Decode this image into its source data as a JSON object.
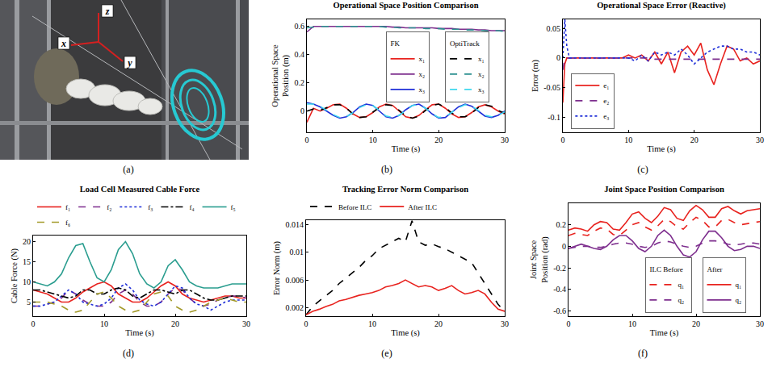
{
  "chart_data": [
    {
      "type": "image",
      "caption": "(a)",
      "annotations": [
        "z",
        "x",
        "y"
      ]
    },
    {
      "type": "line",
      "title": "Operational Space Position Comparison",
      "caption": "(b)",
      "x_label": "Time (s)",
      "y_label": "Operational Space Position (m)",
      "x": [
        0,
        1,
        2,
        3,
        4,
        5,
        6,
        7,
        8,
        9,
        10,
        11,
        12,
        13,
        14,
        15,
        16,
        17,
        18,
        19,
        20,
        21,
        22,
        23,
        24,
        25,
        26,
        27,
        28,
        29,
        30
      ],
      "xlim": [
        0,
        30
      ],
      "xticks": [
        0,
        10,
        20,
        30
      ],
      "ylim": [
        -0.15,
        0.65
      ],
      "yticks": [
        0,
        0.2,
        0.4,
        0.6
      ],
      "grid": false,
      "legend": "right",
      "series": [
        {
          "name": "x₁",
          "group": "FK",
          "color": "#e8231f",
          "line_style": "solid",
          "values": [
            -0.08,
            0.02,
            0.0,
            0.02,
            0.045,
            0.05,
            0.02,
            -0.02,
            -0.045,
            -0.04,
            -0.01,
            0.03,
            0.05,
            0.04,
            0.0,
            -0.04,
            -0.05,
            -0.03,
            0.01,
            0.045,
            0.05,
            0.02,
            -0.02,
            -0.045,
            -0.04,
            -0.01,
            0.03,
            0.045,
            0.03,
            0.0,
            -0.02
          ]
        },
        {
          "name": "x₂",
          "group": "FK",
          "color": "#7e2f8e",
          "line_style": "solid",
          "values": [
            0.56,
            0.6,
            0.6,
            0.6,
            0.6,
            0.6,
            0.6,
            0.6,
            0.6,
            0.6,
            0.6,
            0.6,
            0.6,
            0.595,
            0.595,
            0.59,
            0.59,
            0.59,
            0.59,
            0.59,
            0.585,
            0.585,
            0.585,
            0.58,
            0.58,
            0.58,
            0.575,
            0.575,
            0.57,
            0.57,
            0.57
          ]
        },
        {
          "name": "x₃",
          "group": "FK",
          "color": "#1f2fd8",
          "line_style": "solid",
          "values": [
            0.06,
            0.05,
            0.03,
            0.0,
            -0.03,
            -0.05,
            -0.04,
            -0.01,
            0.03,
            0.05,
            0.04,
            0.0,
            -0.04,
            -0.05,
            -0.03,
            0.01,
            0.04,
            0.05,
            0.02,
            -0.02,
            -0.05,
            -0.045,
            -0.01,
            0.03,
            0.05,
            0.035,
            0.0,
            -0.035,
            -0.045,
            -0.03,
            0.0
          ]
        },
        {
          "name": "x₁",
          "group": "OptiTrack",
          "color": "#000000",
          "line_style": "dashed",
          "values": [
            0.0,
            0.015,
            0.005,
            0.025,
            0.045,
            0.045,
            0.02,
            -0.02,
            -0.045,
            -0.04,
            -0.01,
            0.025,
            0.045,
            0.04,
            0.005,
            -0.035,
            -0.05,
            -0.035,
            0.005,
            0.04,
            0.05,
            0.025,
            -0.015,
            -0.04,
            -0.04,
            -0.015,
            0.025,
            0.045,
            0.035,
            0.005,
            -0.015
          ]
        },
        {
          "name": "x₂",
          "group": "OptiTrack",
          "color": "#2a8f8f",
          "line_style": "dashed",
          "values": [
            0.59,
            0.595,
            0.6,
            0.6,
            0.6,
            0.6,
            0.6,
            0.6,
            0.6,
            0.6,
            0.6,
            0.6,
            0.595,
            0.595,
            0.59,
            0.59,
            0.59,
            0.59,
            0.585,
            0.585,
            0.585,
            0.58,
            0.58,
            0.58,
            0.575,
            0.575,
            0.575,
            0.57,
            0.57,
            0.57,
            0.565
          ]
        },
        {
          "name": "x₃",
          "group": "OptiTrack",
          "color": "#3fd8ee",
          "line_style": "dashed",
          "values": [
            0.05,
            0.05,
            0.035,
            0.005,
            -0.025,
            -0.045,
            -0.04,
            -0.01,
            0.025,
            0.045,
            0.04,
            0.005,
            -0.035,
            -0.045,
            -0.03,
            0.005,
            0.04,
            0.045,
            0.02,
            -0.02,
            -0.045,
            -0.04,
            -0.01,
            0.025,
            0.045,
            0.035,
            0.005,
            -0.03,
            -0.04,
            -0.03,
            -0.005
          ]
        }
      ]
    },
    {
      "type": "line",
      "title": "Operational Space Error (Reactive)",
      "caption": "(c)",
      "x_label": "Time (s)",
      "y_label": "Error (m)",
      "x": [
        0,
        0.3,
        0.6,
        1,
        2,
        3,
        4,
        5,
        6,
        7,
        8,
        9,
        10,
        11,
        12,
        13,
        14,
        15,
        16,
        17,
        18,
        19,
        20,
        21,
        22,
        23,
        24,
        25,
        26,
        27,
        28,
        29,
        30
      ],
      "xlim": [
        0,
        30
      ],
      "xticks": [
        0,
        10,
        20,
        30
      ],
      "ylim": [
        -0.125,
        0.065
      ],
      "yticks": [
        -0.1,
        -0.05,
        0,
        0.05
      ],
      "grid": false,
      "legend": "lower left",
      "series": [
        {
          "name": "e₁",
          "color": "#e8231f",
          "line_style": "solid",
          "values": [
            -0.075,
            -0.01,
            0.0,
            0.0,
            0.0,
            0.0,
            0.0,
            0.0,
            0.0,
            0.0,
            0.0,
            0.0,
            0.005,
            0.0,
            0.005,
            -0.005,
            0.01,
            -0.01,
            0.01,
            -0.025,
            0.01,
            0.02,
            0.005,
            0.025,
            -0.02,
            -0.045,
            -0.01,
            0.02,
            0.015,
            -0.005,
            0.0,
            -0.01,
            -0.005
          ]
        },
        {
          "name": "e₂",
          "color": "#7e2f8e",
          "line_style": "dashed",
          "values": [
            -0.02,
            0.0,
            0.0,
            0.0,
            0.0,
            0.0,
            0.0,
            0.0,
            0.0,
            0.0,
            0.0,
            0.0,
            0.0,
            0.0,
            0.0,
            0.0,
            -0.002,
            -0.002,
            -0.002,
            -0.002,
            -0.002,
            -0.002,
            -0.002,
            -0.002,
            -0.002,
            -0.002,
            -0.002,
            -0.002,
            -0.002,
            -0.002,
            -0.002,
            -0.002,
            -0.002
          ]
        },
        {
          "name": "e₃",
          "color": "#1f2fd8",
          "line_style": "dotted",
          "values": [
            0.0,
            0.065,
            0.02,
            0.0,
            0.0,
            0.0,
            0.0,
            0.0,
            0.0,
            0.0,
            0.0,
            0.0,
            0.0,
            -0.005,
            0.005,
            -0.005,
            0.01,
            0.005,
            0.01,
            0.005,
            0.015,
            0.005,
            -0.01,
            0.0,
            0.01,
            0.015,
            0.02,
            0.02,
            0.015,
            0.015,
            0.01,
            0.01,
            0.005
          ]
        }
      ]
    },
    {
      "type": "line",
      "title": "Load Cell Measured Cable Force",
      "caption": "(d)",
      "x_label": "Time (s)",
      "y_label": "Cable Force (N)",
      "x": [
        0,
        1,
        2,
        3,
        4,
        5,
        6,
        7,
        8,
        9,
        10,
        11,
        12,
        13,
        14,
        15,
        16,
        17,
        18,
        19,
        20,
        21,
        22,
        23,
        24,
        25,
        26,
        27,
        28,
        29,
        30
      ],
      "xlim": [
        0,
        30
      ],
      "xticks": [
        0,
        10,
        20,
        30
      ],
      "ylim": [
        1.5,
        21.5
      ],
      "yticks": [
        5,
        10,
        15,
        20
      ],
      "grid": false,
      "legend": "top",
      "series": [
        {
          "name": "f₁",
          "color": "#e8231f",
          "line_style": "solid",
          "values": [
            8,
            7.5,
            7,
            6,
            5,
            5,
            6,
            7.5,
            8.5,
            9.5,
            10,
            9,
            7,
            6,
            5,
            5,
            6,
            7.5,
            9,
            10,
            9,
            7,
            6,
            5.5,
            5,
            5.5,
            6,
            6.5,
            6.5,
            6,
            6
          ]
        },
        {
          "name": "f₂",
          "color": "#7e2f8e",
          "line_style": "dashed",
          "values": [
            4,
            4,
            4.5,
            5,
            6,
            8,
            7,
            5.5,
            4.5,
            4,
            4,
            5,
            7,
            8,
            7,
            5,
            4,
            4,
            5,
            7,
            8.5,
            8,
            6,
            4.5,
            4,
            4.5,
            5.5,
            6,
            6.5,
            6.5,
            6
          ]
        },
        {
          "name": "f₃",
          "color": "#1f2fd8",
          "line_style": "dotted",
          "values": [
            4,
            4,
            4.5,
            5,
            6.5,
            8,
            7,
            5,
            4.5,
            4,
            4.5,
            6,
            8.5,
            9.5,
            8,
            5.5,
            4.5,
            4,
            5,
            7,
            9,
            8.5,
            6,
            4.5,
            4,
            3,
            4,
            5,
            5.5,
            5.5,
            5.5
          ]
        },
        {
          "name": "f₄",
          "color": "#000000",
          "line_style": "dashdot",
          "values": [
            8,
            8,
            7.5,
            7,
            6.5,
            6,
            6.5,
            8,
            8,
            7,
            7,
            8,
            8.5,
            8,
            6.5,
            6,
            7,
            8,
            8,
            7.5,
            7,
            8,
            8,
            7,
            6,
            5.5,
            5.5,
            6,
            6.5,
            6.5,
            6.5
          ]
        },
        {
          "name": "f₅",
          "color": "#2a9d8f",
          "line_style": "solid",
          "values": [
            10,
            9.5,
            9,
            10,
            12,
            16,
            19,
            19.5,
            15,
            11,
            10,
            13,
            18,
            20,
            17,
            12,
            9.5,
            8.5,
            10,
            14,
            15.5,
            13,
            10,
            9,
            8.5,
            8.5,
            8.5,
            9,
            9.5,
            9.5,
            9.5
          ]
        },
        {
          "name": "f₆",
          "color": "#a39a2a",
          "line_style": "dashed",
          "values": [
            5,
            5,
            5,
            4.5,
            4,
            3,
            2.5,
            3,
            5,
            7,
            7.5,
            6,
            4,
            3,
            2.5,
            3,
            5,
            7,
            7.5,
            6.5,
            4,
            3,
            2.5,
            3,
            4,
            5,
            5.5,
            6,
            5.5,
            5,
            5
          ]
        }
      ]
    },
    {
      "type": "line",
      "title": "Tracking Error Norm Comparison",
      "caption": "(e)",
      "x_label": "Time (s)",
      "y_label": "Error Norm (m)",
      "x": [
        0,
        1,
        2,
        3,
        4,
        5,
        6,
        7,
        8,
        9,
        10,
        11,
        12,
        13,
        14,
        15,
        16,
        17,
        18,
        19,
        20,
        21,
        22,
        23,
        24,
        25,
        26,
        27,
        28,
        29,
        30
      ],
      "xlim": [
        0,
        30
      ],
      "xticks": [
        0,
        10,
        20,
        30
      ],
      "ylim": [
        0.0008,
        0.0146
      ],
      "yticks": [
        0.002,
        0.006,
        0.01,
        0.014
      ],
      "grid": false,
      "legend": "top",
      "series": [
        {
          "name": "Before ILC",
          "color": "#000000",
          "line_style": "dashed",
          "values": [
            0.001,
            0.0022,
            0.003,
            0.0037,
            0.0045,
            0.0055,
            0.0063,
            0.007,
            0.0078,
            0.0088,
            0.0095,
            0.0105,
            0.011,
            0.0115,
            0.012,
            0.0115,
            0.0145,
            0.0115,
            0.011,
            0.0112,
            0.0108,
            0.0105,
            0.01,
            0.0095,
            0.009,
            0.0085,
            0.007,
            0.0055,
            0.004,
            0.0025,
            0.0015
          ]
        },
        {
          "name": "After ILC",
          "color": "#e8231f",
          "line_style": "solid",
          "values": [
            0.001,
            0.0015,
            0.0018,
            0.0022,
            0.0025,
            0.003,
            0.0032,
            0.0035,
            0.0038,
            0.004,
            0.0042,
            0.0045,
            0.005,
            0.0052,
            0.0055,
            0.006,
            0.0055,
            0.005,
            0.0052,
            0.005,
            0.0045,
            0.0048,
            0.0052,
            0.0045,
            0.004,
            0.0042,
            0.0045,
            0.004,
            0.0028,
            0.0018,
            0.0015
          ]
        }
      ]
    },
    {
      "type": "line",
      "title": "Joint Space Position Comparison",
      "caption": "(f)",
      "x_label": "Time (s)",
      "y_label": "Joint Space Position (rad)",
      "x": [
        0,
        1,
        2,
        3,
        4,
        5,
        6,
        7,
        8,
        9,
        10,
        11,
        12,
        13,
        14,
        15,
        16,
        17,
        18,
        19,
        20,
        21,
        22,
        23,
        24,
        25,
        26,
        27,
        28,
        29,
        30
      ],
      "xlim": [
        0,
        30
      ],
      "xticks": [
        0,
        10,
        20,
        30
      ],
      "ylim": [
        -0.65,
        0.4
      ],
      "yticks": [
        -0.6,
        -0.4,
        -0.2,
        0,
        0.2
      ],
      "grid": false,
      "legend": "lower right",
      "series": [
        {
          "name": "q₁",
          "group": "ILC Before",
          "color": "#e8231f",
          "line_style": "dashed",
          "values": [
            0.1,
            0.12,
            0.11,
            0.1,
            0.14,
            0.17,
            0.16,
            0.11,
            0.1,
            0.15,
            0.2,
            0.22,
            0.18,
            0.15,
            0.19,
            0.25,
            0.23,
            0.18,
            0.16,
            0.22,
            0.27,
            0.24,
            0.18,
            0.18,
            0.24,
            0.25,
            0.22,
            0.2,
            0.21,
            0.22,
            0.23
          ]
        },
        {
          "name": "q₂",
          "group": "ILC Before",
          "color": "#7e2f8e",
          "line_style": "dashed",
          "values": [
            -0.02,
            -0.01,
            0.0,
            0.0,
            -0.01,
            -0.01,
            0.0,
            0.02,
            0.03,
            0.03,
            0.02,
            0.0,
            -0.01,
            0.0,
            0.03,
            0.05,
            0.04,
            0.02,
            0.0,
            -0.01,
            0.0,
            0.03,
            0.05,
            0.05,
            0.04,
            0.02,
            0.01,
            0.02,
            0.03,
            0.03,
            0.02
          ]
        },
        {
          "name": "q₁",
          "group": "After",
          "color": "#e8231f",
          "line_style": "solid",
          "values": [
            0.15,
            0.17,
            0.16,
            0.14,
            0.2,
            0.23,
            0.22,
            0.16,
            0.15,
            0.22,
            0.3,
            0.32,
            0.26,
            0.22,
            0.28,
            0.36,
            0.34,
            0.26,
            0.24,
            0.33,
            0.38,
            0.34,
            0.27,
            0.27,
            0.35,
            0.37,
            0.33,
            0.3,
            0.33,
            0.34,
            0.35
          ]
        },
        {
          "name": "q₂",
          "group": "After",
          "color": "#7e2f8e",
          "line_style": "solid",
          "values": [
            -0.02,
            0.0,
            0.02,
            0.0,
            -0.02,
            -0.03,
            0.0,
            0.06,
            0.1,
            0.1,
            0.05,
            -0.02,
            -0.05,
            0.0,
            0.1,
            0.15,
            0.1,
            0.0,
            -0.08,
            -0.1,
            -0.05,
            0.06,
            0.14,
            0.14,
            0.08,
            0.0,
            -0.04,
            -0.03,
            0.0,
            0.0,
            -0.02
          ]
        }
      ]
    }
  ]
}
